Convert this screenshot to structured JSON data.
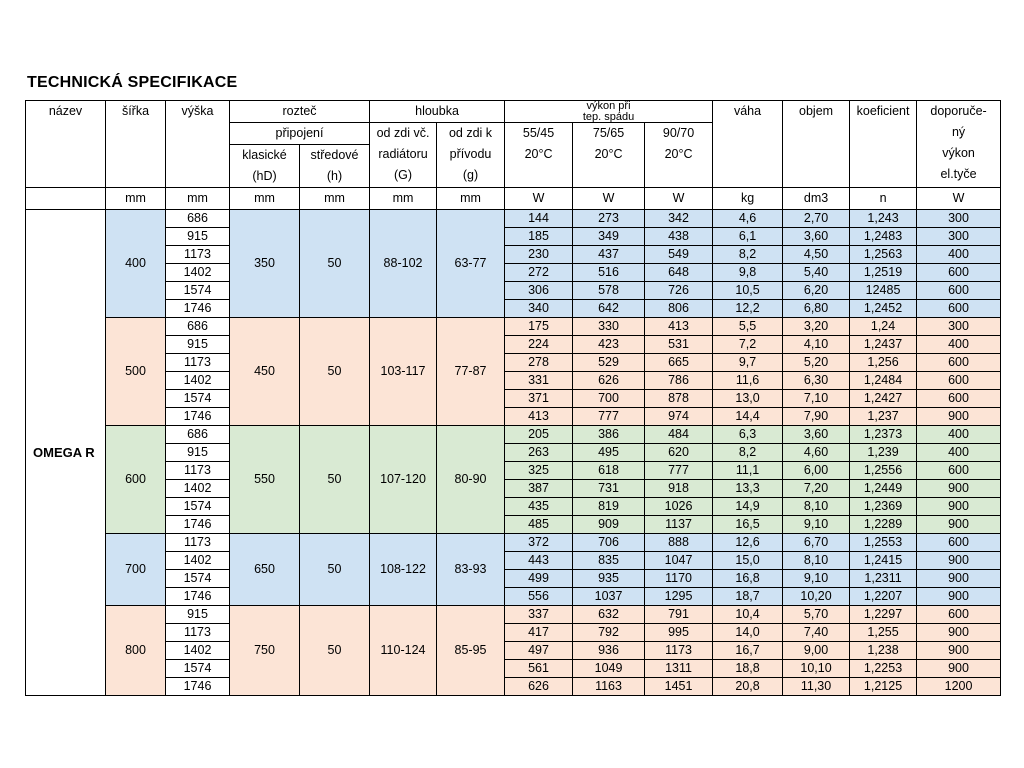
{
  "title": "TECHNICKÁ SPECIFIKACE",
  "product_name": "OMEGA R",
  "table": {
    "header": {
      "nazev": "název",
      "sirka": "šířka",
      "vyska": "výška",
      "roztec": "rozteč",
      "pripojeni": "připojení",
      "klasicke_l1": "klasické",
      "klasicke_l2": "(hD)",
      "stredove_l1": "středové",
      "stredove_l2": "(h)",
      "hloubka": "hloubka",
      "odzdi_vc_l1": "od zdi  vč.",
      "odzdi_vc_l2": "radiátoru",
      "odzdi_vc_l3": "(G)",
      "odzdi_k_l1": "od zdi  k",
      "odzdi_k_l2": "přívodu",
      "odzdi_k_l3": "(g)",
      "vykon_l1": "výkon při",
      "vykon_l2": "tep. spádu",
      "t5545": "55/45",
      "t7565": "75/65",
      "t9070": "90/70",
      "deg": "20°C",
      "vaha": "váha",
      "objem": "objem",
      "koeficient": "koeficient",
      "dopor_l1": "doporuče-",
      "dopor_l2": "ný",
      "dopor_l3": "výkon",
      "dopor_l4": "el.tyče",
      "unit_mm": "mm",
      "unit_w": "W",
      "unit_kg": "kg",
      "unit_dm3": "dm3",
      "unit_n": "n"
    },
    "groups": [
      {
        "sirka": "400",
        "color": "#cfe2f3",
        "roztec_klasicke": "350",
        "roztec_stredove": "50",
        "hloubka_radiator": "88-102",
        "hloubka_privod": "63-77",
        "rows": [
          [
            "686",
            "144",
            "273",
            "342",
            "4,6",
            "2,70",
            "1,243",
            "300"
          ],
          [
            "915",
            "185",
            "349",
            "438",
            "6,1",
            "3,60",
            "1,2483",
            "300"
          ],
          [
            "1173",
            "230",
            "437",
            "549",
            "8,2",
            "4,50",
            "1,2563",
            "400"
          ],
          [
            "1402",
            "272",
            "516",
            "648",
            "9,8",
            "5,40",
            "1,2519",
            "600"
          ],
          [
            "1574",
            "306",
            "578",
            "726",
            "10,5",
            "6,20",
            "12485",
            "600"
          ],
          [
            "1746",
            "340",
            "642",
            "806",
            "12,2",
            "6,80",
            "1,2452",
            "600"
          ]
        ]
      },
      {
        "sirka": "500",
        "color": "#fce4d6",
        "roztec_klasicke": "450",
        "roztec_stredove": "50",
        "hloubka_radiator": "103-117",
        "hloubka_privod": "77-87",
        "rows": [
          [
            "686",
            "175",
            "330",
            "413",
            "5,5",
            "3,20",
            "1,24",
            "300"
          ],
          [
            "915",
            "224",
            "423",
            "531",
            "7,2",
            "4,10",
            "1,2437",
            "400"
          ],
          [
            "1173",
            "278",
            "529",
            "665",
            "9,7",
            "5,20",
            "1,256",
            "600"
          ],
          [
            "1402",
            "331",
            "626",
            "786",
            "11,6",
            "6,30",
            "1,2484",
            "600"
          ],
          [
            "1574",
            "371",
            "700",
            "878",
            "13,0",
            "7,10",
            "1,2427",
            "600"
          ],
          [
            "1746",
            "413",
            "777",
            "974",
            "14,4",
            "7,90",
            "1,237",
            "900"
          ]
        ]
      },
      {
        "sirka": "600",
        "color": "#d9ead3",
        "roztec_klasicke": "550",
        "roztec_stredove": "50",
        "hloubka_radiator": "107-120",
        "hloubka_privod": "80-90",
        "rows": [
          [
            "686",
            "205",
            "386",
            "484",
            "6,3",
            "3,60",
            "1,2373",
            "400"
          ],
          [
            "915",
            "263",
            "495",
            "620",
            "8,2",
            "4,60",
            "1,239",
            "400"
          ],
          [
            "1173",
            "325",
            "618",
            "777",
            "11,1",
            "6,00",
            "1,2556",
            "600"
          ],
          [
            "1402",
            "387",
            "731",
            "918",
            "13,3",
            "7,20",
            "1,2449",
            "900"
          ],
          [
            "1574",
            "435",
            "819",
            "1026",
            "14,9",
            "8,10",
            "1,2369",
            "900"
          ],
          [
            "1746",
            "485",
            "909",
            "1137",
            "16,5",
            "9,10",
            "1,2289",
            "900"
          ]
        ]
      },
      {
        "sirka": "700",
        "color": "#cfe2f3",
        "roztec_klasicke": "650",
        "roztec_stredove": "50",
        "hloubka_radiator": "108-122",
        "hloubka_privod": "83-93",
        "rows": [
          [
            "1173",
            "372",
            "706",
            "888",
            "12,6",
            "6,70",
            "1,2553",
            "600"
          ],
          [
            "1402",
            "443",
            "835",
            "1047",
            "15,0",
            "8,10",
            "1,2415",
            "900"
          ],
          [
            "1574",
            "499",
            "935",
            "1170",
            "16,8",
            "9,10",
            "1,2311",
            "900"
          ],
          [
            "1746",
            "556",
            "1037",
            "1295",
            "18,7",
            "10,20",
            "1,2207",
            "900"
          ]
        ]
      },
      {
        "sirka": "800",
        "color": "#fce4d6",
        "roztec_klasicke": "750",
        "roztec_stredove": "50",
        "hloubka_radiator": "110-124",
        "hloubka_privod": "85-95",
        "rows": [
          [
            "915",
            "337",
            "632",
            "791",
            "10,4",
            "5,70",
            "1,2297",
            "600"
          ],
          [
            "1173",
            "417",
            "792",
            "995",
            "14,0",
            "7,40",
            "1,255",
            "900"
          ],
          [
            "1402",
            "497",
            "936",
            "1173",
            "16,7",
            "9,00",
            "1,238",
            "900"
          ],
          [
            "1574",
            "561",
            "1049",
            "1311",
            "18,8",
            "10,10",
            "1,2253",
            "900"
          ],
          [
            "1746",
            "626",
            "1163",
            "1451",
            "20,8",
            "11,30",
            "1,2125",
            "1200"
          ]
        ]
      }
    ]
  }
}
